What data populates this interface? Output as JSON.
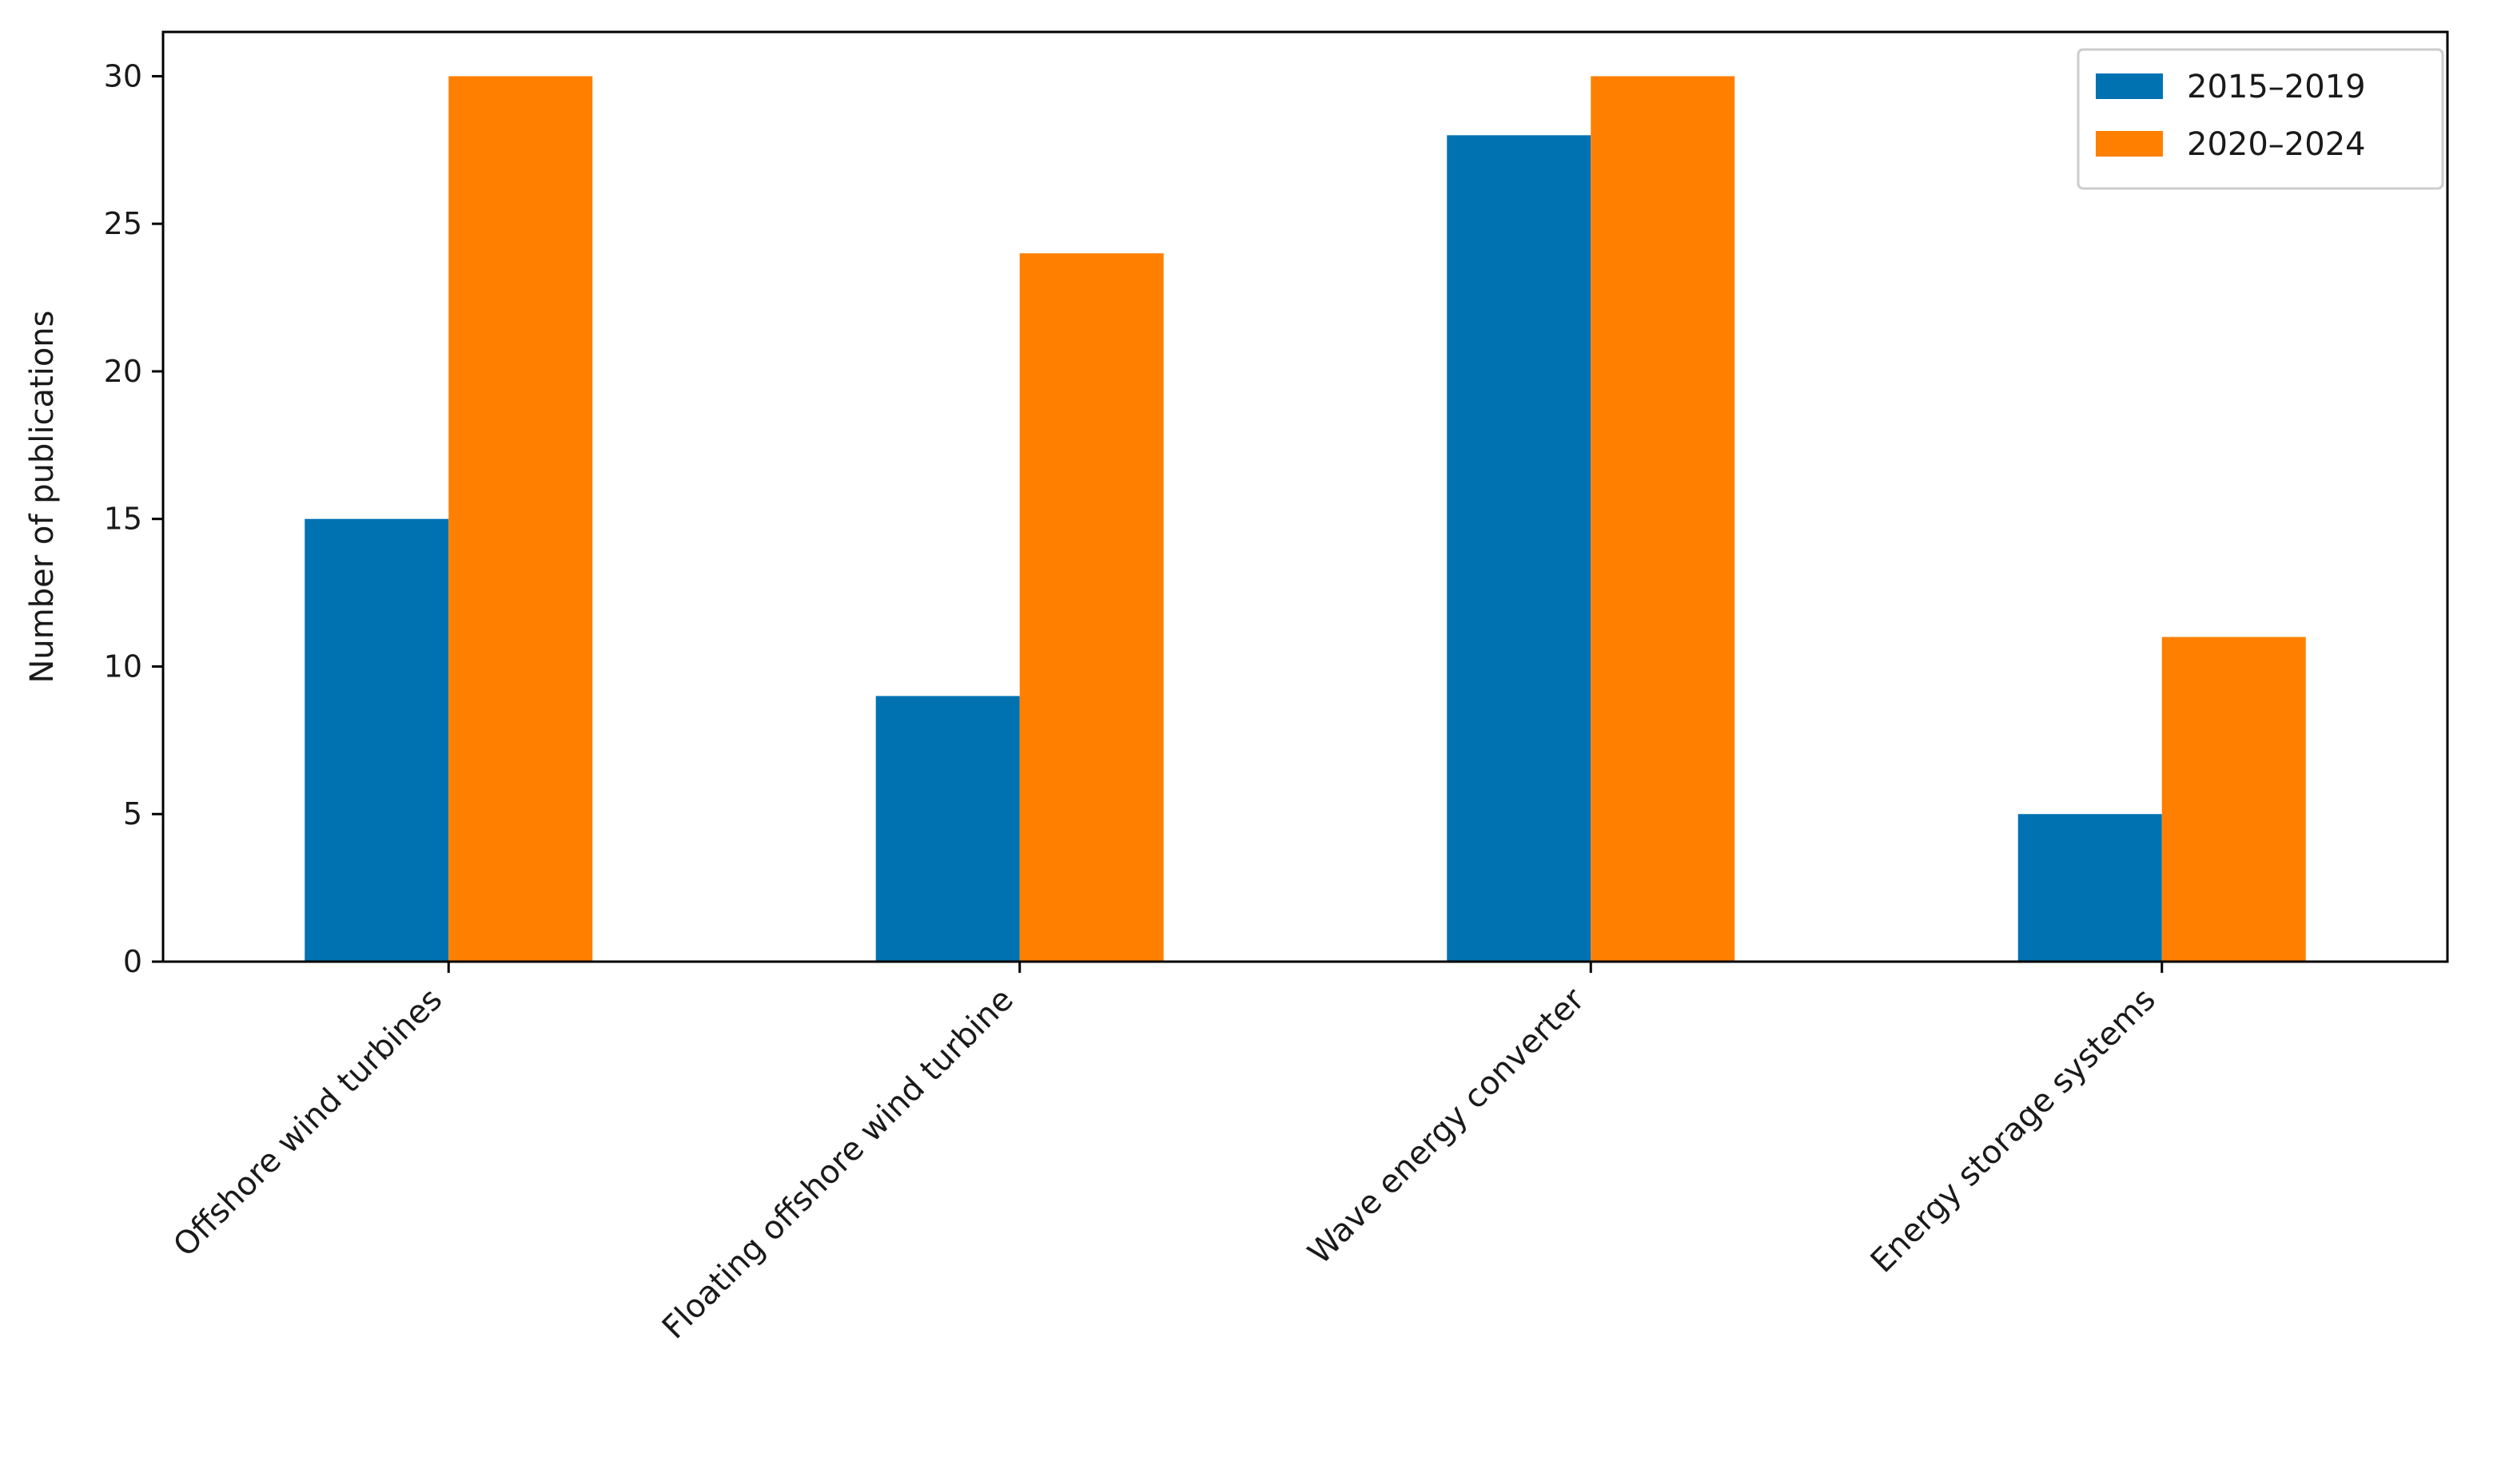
{
  "chart_data": {
    "type": "bar",
    "categories": [
      "Offshore wind turbines",
      "Floating offshore wind turbine",
      "Wave energy converter",
      "Energy storage systems"
    ],
    "series": [
      {
        "name": "2015–2019",
        "values": [
          15,
          9,
          28,
          5
        ],
        "color": "#0072b2"
      },
      {
        "name": "2020–2024",
        "values": [
          30,
          24,
          30,
          11
        ],
        "color": "#ff7f00"
      }
    ],
    "xlabel": "",
    "ylabel": "Number of publications",
    "ylim": [
      0,
      31.5
    ],
    "yticks": [
      0,
      5,
      10,
      15,
      20,
      25,
      30
    ],
    "grid": false,
    "legend_position": "top-right"
  }
}
